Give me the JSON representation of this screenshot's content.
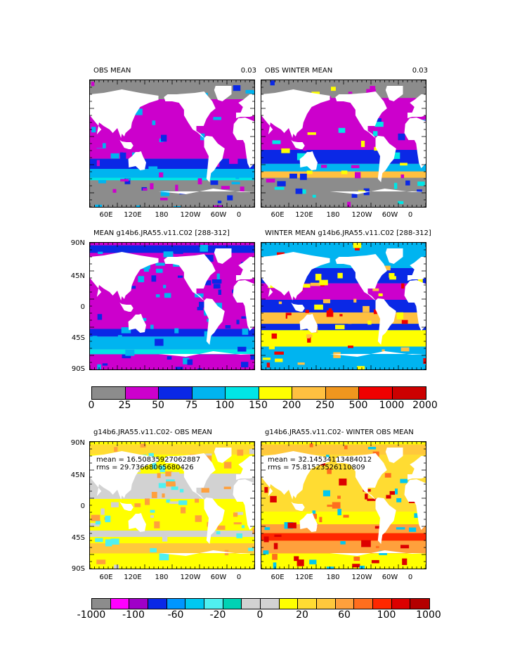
{
  "panels": [
    {
      "id": "p1",
      "title": "OBS MEAN",
      "value": "0.03",
      "scheme": "obs",
      "ylabels": [
        "",
        "",
        "",
        "",
        ""
      ],
      "xlabels": [
        "60E",
        "120E",
        "180",
        "120W",
        "60W",
        "0"
      ]
    },
    {
      "id": "p2",
      "title": "OBS WINTER MEAN",
      "value": "0.03",
      "scheme": "obsw",
      "ylabels": [],
      "xlabels": [
        "60E",
        "120E",
        "180",
        "120W",
        "60W",
        "0"
      ]
    },
    {
      "id": "p3",
      "title": "MEAN g14b6.JRA55.v11.C02 [288-312]",
      "value": "",
      "scheme": "mod",
      "ylabels": [
        "90N",
        "45N",
        "0",
        "45S",
        "90S"
      ],
      "xlabels": []
    },
    {
      "id": "p4",
      "title": "WINTER MEAN g14b6.JRA55.v11.C02 [288-312]",
      "value": "",
      "scheme": "modw",
      "ylabels": [],
      "xlabels": []
    },
    {
      "id": "p5",
      "title": "g14b6.JRA55.v11.C02- OBS MEAN",
      "value": "",
      "scheme": "diff",
      "ylabels": [
        "90N",
        "45N",
        "0",
        "45S",
        "90S"
      ],
      "xlabels": [
        "60E",
        "120E",
        "180",
        "120W",
        "60W",
        "0"
      ],
      "stats": [
        "mean = 16.50835927062887",
        "rms = 29.73668065680426"
      ]
    },
    {
      "id": "p6",
      "title": "g14b6.JRA55.v11.C02- WINTER OBS MEAN",
      "value": "",
      "scheme": "diffw",
      "ylabels": [],
      "xlabels": [
        "60E",
        "120E",
        "180",
        "120W",
        "60W",
        "0"
      ],
      "stats": [
        "mean = 32.14534113484012",
        "rms = 75.81523526110809"
      ]
    }
  ],
  "colorbars": [
    {
      "id": "cb1",
      "colors": [
        "#8c8c8c",
        "#cc00cc",
        "#0a28e6",
        "#00b4f0",
        "#00e6e6",
        "#ffff00",
        "#ffc040",
        "#f0961e",
        "#f00000",
        "#cc0000"
      ],
      "labels": [
        "0",
        "25",
        "50",
        "75",
        "100",
        "150",
        "200",
        "250",
        "500",
        "1000",
        "2000"
      ]
    },
    {
      "id": "cb2",
      "colors": [
        "#8c8c8c",
        "#ff00ff",
        "#a000c8",
        "#0a28e6",
        "#0096ff",
        "#00c8f0",
        "#50f0f0",
        "#00d2b4",
        "#d2d2d2",
        "#d2d2d2",
        "#ffff00",
        "#ffdc32",
        "#ffc83c",
        "#ffa03c",
        "#ff6e1e",
        "#ff2800",
        "#dc0000",
        "#b40000"
      ],
      "labels": [
        "-1000",
        "-100",
        "-60",
        "-20",
        "0",
        "20",
        "60",
        "100",
        "1000"
      ]
    }
  ]
}
